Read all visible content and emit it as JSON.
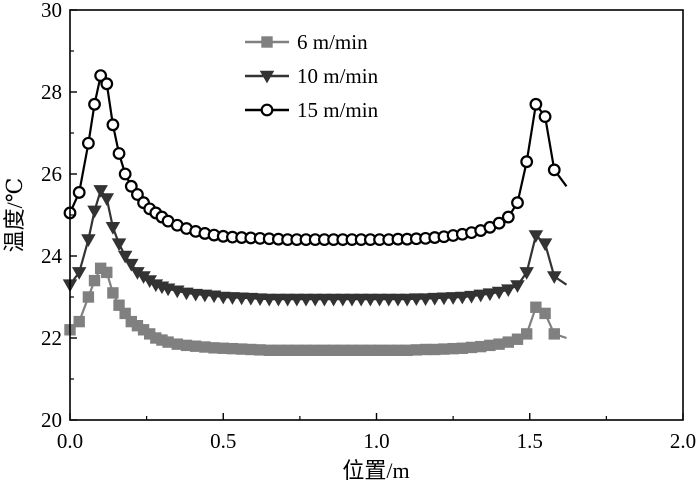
{
  "chart_data": {
    "type": "line",
    "xlabel": "位置/m",
    "ylabel": "温度/℃",
    "xlim": [
      0,
      2.0
    ],
    "ylim": [
      20,
      30
    ],
    "x_ticks": [
      "0.0",
      "0.5",
      "1.0",
      "1.5",
      "2.0"
    ],
    "y_ticks": [
      "20",
      "22",
      "24",
      "26",
      "28",
      "30"
    ],
    "grid": false,
    "legend_position": "top-center",
    "series": [
      {
        "name": "6 m/min",
        "marker": "square",
        "color": "#808080",
        "x": [
          0.0,
          0.03,
          0.06,
          0.08,
          0.1,
          0.12,
          0.14,
          0.16,
          0.18,
          0.2,
          0.22,
          0.24,
          0.26,
          0.28,
          0.3,
          0.32,
          0.35,
          0.38,
          0.41,
          0.44,
          0.47,
          0.5,
          0.53,
          0.56,
          0.59,
          0.62,
          0.65,
          0.68,
          0.71,
          0.74,
          0.77,
          0.8,
          0.83,
          0.86,
          0.89,
          0.92,
          0.95,
          0.98,
          1.01,
          1.04,
          1.07,
          1.1,
          1.13,
          1.16,
          1.19,
          1.22,
          1.25,
          1.28,
          1.31,
          1.34,
          1.37,
          1.4,
          1.43,
          1.46,
          1.49,
          1.52,
          1.55,
          1.58,
          1.62
        ],
        "y": [
          22.2,
          22.4,
          23.0,
          23.4,
          23.7,
          23.6,
          23.1,
          22.8,
          22.6,
          22.4,
          22.3,
          22.2,
          22.1,
          22.0,
          21.95,
          21.9,
          21.85,
          21.82,
          21.8,
          21.78,
          21.76,
          21.75,
          21.74,
          21.73,
          21.72,
          21.71,
          21.7,
          21.7,
          21.7,
          21.7,
          21.7,
          21.7,
          21.7,
          21.7,
          21.7,
          21.7,
          21.7,
          21.7,
          21.7,
          21.7,
          21.7,
          21.7,
          21.71,
          21.72,
          21.72,
          21.73,
          21.74,
          21.75,
          21.77,
          21.79,
          21.82,
          21.85,
          21.9,
          21.97,
          22.1,
          22.75,
          22.6,
          22.1,
          22.0
        ]
      },
      {
        "name": "10 m/min",
        "marker": "triangle-down",
        "color": "#333333",
        "x": [
          0.0,
          0.03,
          0.06,
          0.08,
          0.1,
          0.12,
          0.14,
          0.16,
          0.18,
          0.2,
          0.22,
          0.24,
          0.26,
          0.28,
          0.3,
          0.32,
          0.35,
          0.38,
          0.41,
          0.44,
          0.47,
          0.5,
          0.53,
          0.56,
          0.59,
          0.62,
          0.65,
          0.68,
          0.71,
          0.74,
          0.77,
          0.8,
          0.83,
          0.86,
          0.89,
          0.92,
          0.95,
          0.98,
          1.01,
          1.04,
          1.07,
          1.1,
          1.13,
          1.16,
          1.19,
          1.22,
          1.25,
          1.28,
          1.31,
          1.34,
          1.37,
          1.4,
          1.43,
          1.46,
          1.49,
          1.52,
          1.55,
          1.58,
          1.62
        ],
        "y": [
          23.3,
          23.6,
          24.4,
          25.1,
          25.6,
          25.4,
          24.7,
          24.3,
          24.0,
          23.8,
          23.6,
          23.5,
          23.4,
          23.3,
          23.25,
          23.2,
          23.15,
          23.1,
          23.07,
          23.05,
          23.03,
          23.0,
          22.99,
          22.98,
          22.97,
          22.96,
          22.95,
          22.95,
          22.95,
          22.95,
          22.95,
          22.95,
          22.95,
          22.95,
          22.95,
          22.95,
          22.95,
          22.95,
          22.95,
          22.95,
          22.95,
          22.95,
          22.96,
          22.96,
          22.97,
          22.98,
          22.99,
          23.0,
          23.02,
          23.05,
          23.08,
          23.12,
          23.18,
          23.28,
          23.6,
          24.5,
          24.3,
          23.5,
          23.3
        ]
      },
      {
        "name": "15 m/min",
        "marker": "circle",
        "color": "#000000",
        "x": [
          0.0,
          0.03,
          0.06,
          0.08,
          0.1,
          0.12,
          0.14,
          0.16,
          0.18,
          0.2,
          0.22,
          0.24,
          0.26,
          0.28,
          0.3,
          0.32,
          0.35,
          0.38,
          0.41,
          0.44,
          0.47,
          0.5,
          0.53,
          0.56,
          0.59,
          0.62,
          0.65,
          0.68,
          0.71,
          0.74,
          0.77,
          0.8,
          0.83,
          0.86,
          0.89,
          0.92,
          0.95,
          0.98,
          1.01,
          1.04,
          1.07,
          1.1,
          1.13,
          1.16,
          1.19,
          1.22,
          1.25,
          1.28,
          1.31,
          1.34,
          1.37,
          1.4,
          1.43,
          1.46,
          1.49,
          1.52,
          1.55,
          1.58,
          1.62
        ],
        "y": [
          25.05,
          25.55,
          26.75,
          27.7,
          28.4,
          28.2,
          27.2,
          26.5,
          26.0,
          25.7,
          25.5,
          25.3,
          25.15,
          25.05,
          24.95,
          24.85,
          24.75,
          24.67,
          24.6,
          24.55,
          24.51,
          24.48,
          24.46,
          24.45,
          24.44,
          24.43,
          24.42,
          24.41,
          24.4,
          24.4,
          24.4,
          24.4,
          24.4,
          24.4,
          24.4,
          24.4,
          24.4,
          24.4,
          24.4,
          24.4,
          24.41,
          24.41,
          24.42,
          24.43,
          24.45,
          24.47,
          24.5,
          24.53,
          24.57,
          24.62,
          24.7,
          24.8,
          24.95,
          25.3,
          26.3,
          27.7,
          27.4,
          26.1,
          25.7
        ]
      }
    ]
  }
}
